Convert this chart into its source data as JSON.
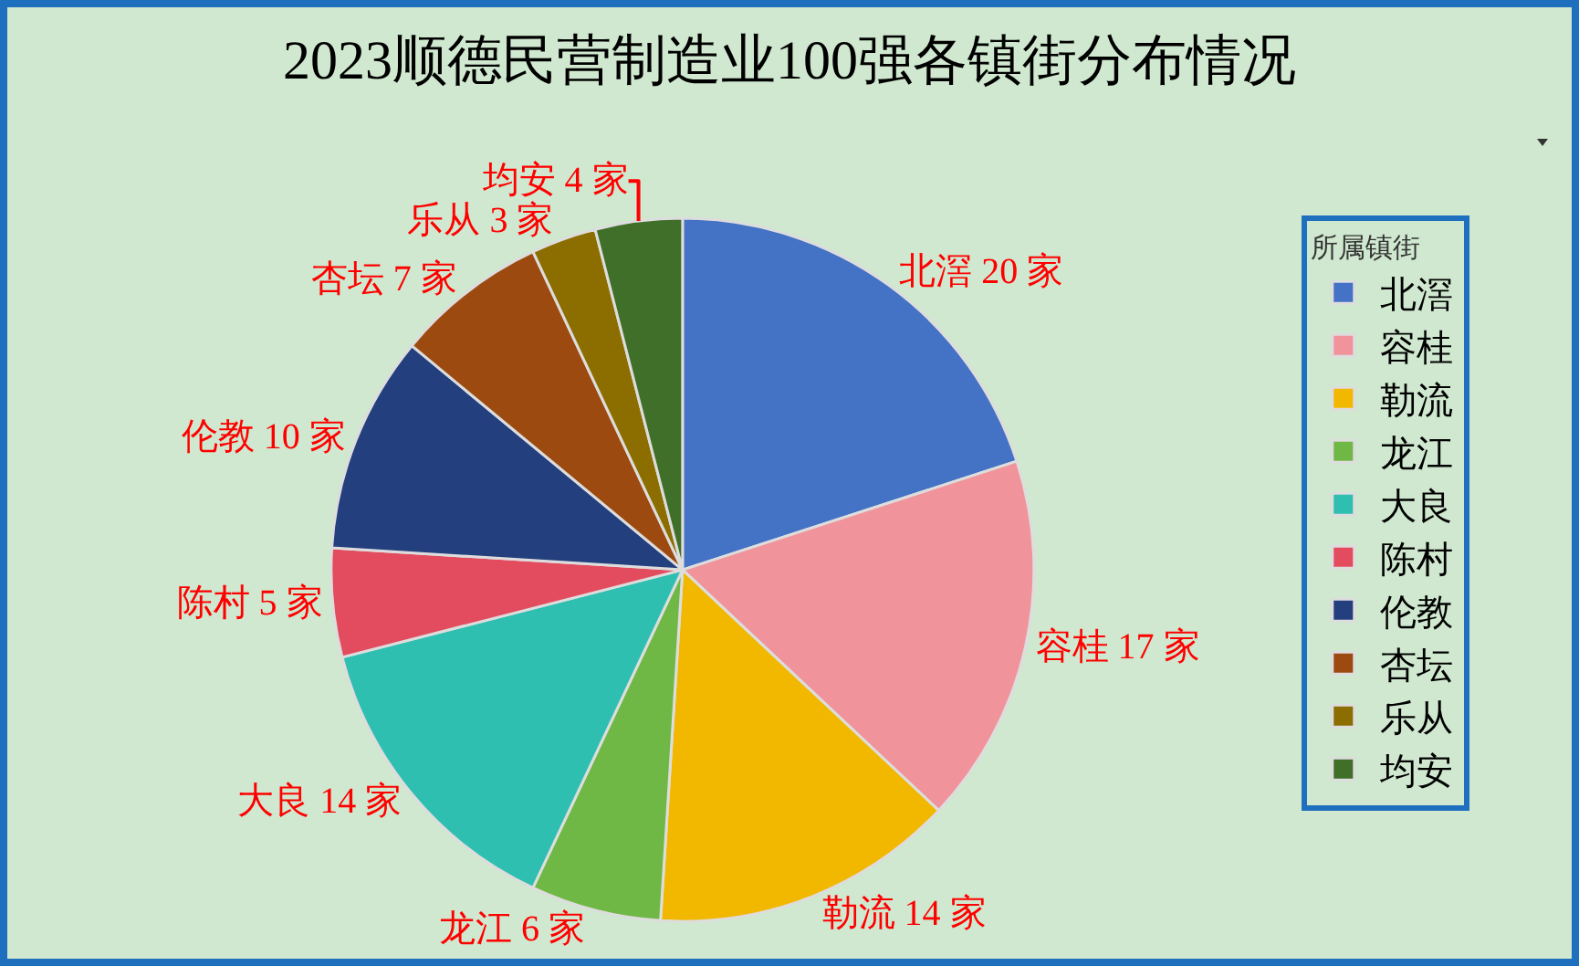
{
  "chart_data": {
    "type": "pie",
    "title": "2023顺德民营制造业100强各镇街分布情况",
    "legend_title": "所属镇街",
    "categories": [
      "北滘",
      "容桂",
      "勒流",
      "龙江",
      "大良",
      "陈村",
      "伦教",
      "杏坛",
      "乐从",
      "均安"
    ],
    "values": [
      20,
      17,
      14,
      6,
      14,
      5,
      10,
      7,
      3,
      4
    ],
    "colors": [
      "#4472c4",
      "#f0939b",
      "#f2b800",
      "#70b845",
      "#2fbfb0",
      "#e34c5e",
      "#243f7e",
      "#9c4a10",
      "#8c6d00",
      "#3f6f28"
    ],
    "value_labels": [
      "北滘 20 家",
      "容桂 17 家",
      "勒流 14 家",
      "龙江 6 家",
      "大良 14 家",
      "陈村 5 家",
      "伦教 10 家",
      "杏坛 7 家",
      "乐从 3 家",
      "均安 4 家"
    ],
    "legend": "right"
  }
}
